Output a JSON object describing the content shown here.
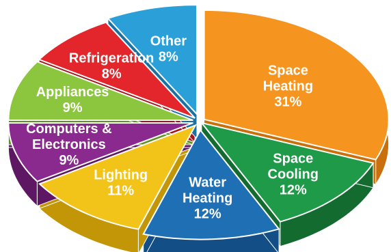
{
  "chart_data": {
    "type": "pie",
    "style": "3d-exploded",
    "slices": [
      {
        "label": "Space Heating",
        "value": 31,
        "display": "31%",
        "color": "#f5941e",
        "side": "#c96f0c",
        "label_lines": [
          "Space",
          "Heating"
        ]
      },
      {
        "label": "Space Cooling",
        "value": 12,
        "display": "12%",
        "color": "#1f9a48",
        "side": "#136b30",
        "label_lines": [
          "Space",
          "Cooling"
        ]
      },
      {
        "label": "Water Heating",
        "value": 12,
        "display": "12%",
        "color": "#1f6fb5",
        "side": "#134f86",
        "label_lines": [
          "Water",
          "Heating"
        ]
      },
      {
        "label": "Lighting",
        "value": 11,
        "display": "11%",
        "color": "#f2c318",
        "side": "#c39608",
        "label_lines": [
          "Lighting"
        ]
      },
      {
        "label": "Computers & Electronics",
        "value": 9,
        "display": "9%",
        "color": "#8a2a8e",
        "side": "#5e1762",
        "label_lines": [
          "Computers &",
          "Electronics"
        ]
      },
      {
        "label": "Appliances",
        "value": 9,
        "display": "9%",
        "color": "#8cc63f",
        "side": "#5f9224",
        "label_lines": [
          "Appliances"
        ]
      },
      {
        "label": "Refrigeration",
        "value": 8,
        "display": "8%",
        "color": "#e3262b",
        "side": "#a5141a",
        "label_lines": [
          "Refrigeration"
        ]
      },
      {
        "label": "Other",
        "value": 8,
        "display": "8%",
        "color": "#2b9fd8",
        "side": "#1a72a3",
        "label_lines": [
          "Other"
        ]
      }
    ],
    "start_angle_deg": 0,
    "direction": "clockwise-from-top",
    "legend": "none"
  }
}
